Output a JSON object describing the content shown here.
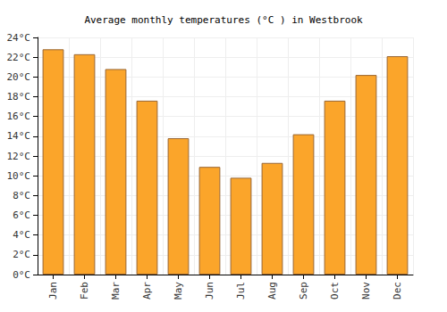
{
  "chart_data": {
    "type": "bar",
    "title": "Average monthly temperatures (°C ) in Westbrook",
    "categories": [
      "Jan",
      "Feb",
      "Mar",
      "Apr",
      "May",
      "Jun",
      "Jul",
      "Aug",
      "Sep",
      "Oct",
      "Nov",
      "Dec"
    ],
    "values": [
      22.8,
      22.3,
      20.8,
      17.6,
      13.8,
      10.9,
      9.8,
      11.3,
      14.2,
      17.6,
      20.2,
      22.1
    ],
    "color": "#fba52a",
    "ylim": [
      0,
      24
    ],
    "yticks": [
      {
        "value": 0,
        "label": "0°C"
      },
      {
        "value": 2,
        "label": "2°C"
      },
      {
        "value": 4,
        "label": "4°C"
      },
      {
        "value": 6,
        "label": "6°C"
      },
      {
        "value": 8,
        "label": "8°C"
      },
      {
        "value": 10,
        "label": "10°C"
      },
      {
        "value": 12,
        "label": "12°C"
      },
      {
        "value": 14,
        "label": "14°C"
      },
      {
        "value": 16,
        "label": "16°C"
      },
      {
        "value": 18,
        "label": "18°C"
      },
      {
        "value": 20,
        "label": "20°C"
      },
      {
        "value": 22,
        "label": "22°C"
      },
      {
        "value": 24,
        "label": "24°C"
      }
    ],
    "grid": true
  }
}
